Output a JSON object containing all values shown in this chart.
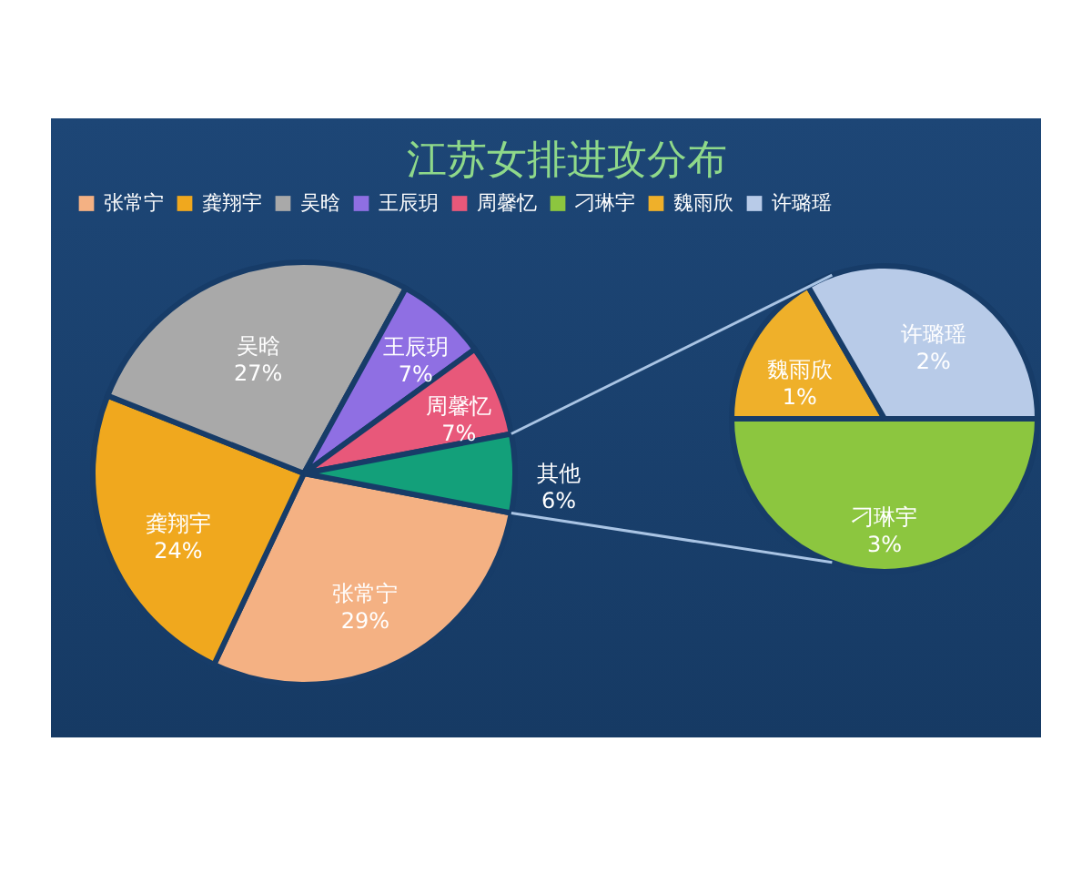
{
  "chart_data": [
    {
      "type": "pie",
      "title": "江苏女排进攻分布",
      "legend": "top",
      "categories": [
        "张常宁",
        "龚翔宇",
        "吴晗",
        "王辰玥",
        "周馨忆",
        "其他"
      ],
      "values": [
        29,
        24,
        27,
        7,
        7,
        6
      ],
      "value_labels": [
        "29%",
        "24%",
        "27%",
        "7%",
        "7%",
        "6%"
      ],
      "colors": [
        "#f4b183",
        "#f0a81e",
        "#a9a9a9",
        "#8f6fe3",
        "#e8587a",
        "#13a07a"
      ]
    },
    {
      "type": "pie",
      "legend": "top",
      "categories": [
        "刁琳宇",
        "魏雨欣",
        "许璐瑶"
      ],
      "values": [
        3,
        1,
        2
      ],
      "value_labels": [
        "3%",
        "1%",
        "2%"
      ],
      "colors": [
        "#8cc63f",
        "#efb02a",
        "#b8cbe8"
      ]
    }
  ]
}
